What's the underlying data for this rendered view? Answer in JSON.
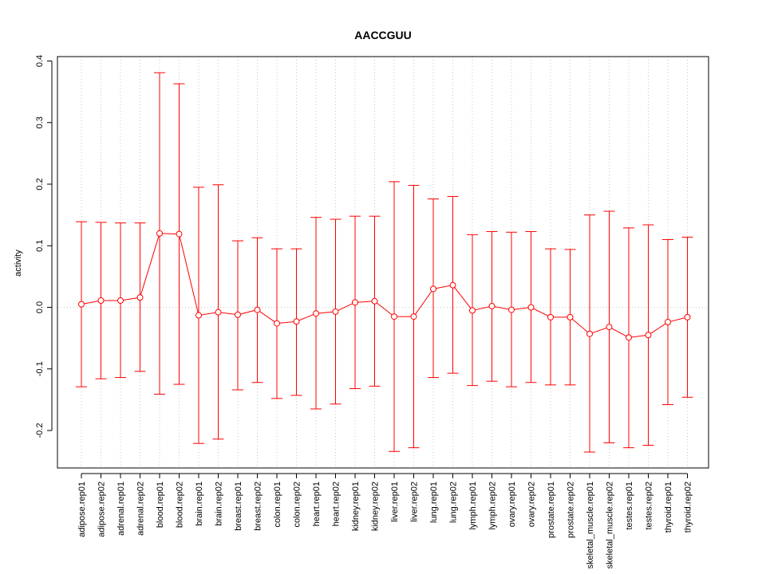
{
  "chart_data": {
    "type": "line",
    "title": "AACCGUU",
    "xlabel": "",
    "ylabel": "activity",
    "ylim": [
      -0.26,
      0.41
    ],
    "yticks": [
      -0.2,
      -0.1,
      0.0,
      0.1,
      0.2,
      0.3,
      0.4
    ],
    "ytick_labels": [
      "-0.2",
      "-0.1",
      "0.0",
      "0.1",
      "0.2",
      "0.3",
      "0.4"
    ],
    "grid": true,
    "colors": {
      "series": "#ff0000",
      "grid": "#c8c8c8",
      "axis": "#000000"
    },
    "categories": [
      "adipose.rep01",
      "adipose.rep02",
      "adrenal.rep01",
      "adrenal.rep02",
      "blood.rep01",
      "blood.rep02",
      "brain.rep01",
      "brain.rep02",
      "breast.rep01",
      "breast.rep02",
      "colon.rep01",
      "colon.rep02",
      "heart.rep01",
      "heart.rep02",
      "kidney.rep01",
      "kidney.rep02",
      "liver.rep01",
      "liver.rep02",
      "lung.rep01",
      "lung.rep02",
      "lymph.rep01",
      "lymph.rep02",
      "ovary.rep01",
      "ovary.rep02",
      "prostate.rep01",
      "prostate.rep02",
      "skeletal_muscle.rep01",
      "skeletal_muscle.rep02",
      "testes.rep01",
      "testes.rep02",
      "thyroid.rep01",
      "thyroid.rep02"
    ],
    "values": [
      0.005,
      0.011,
      0.011,
      0.016,
      0.12,
      0.119,
      -0.013,
      -0.008,
      -0.012,
      -0.004,
      -0.026,
      -0.023,
      -0.01,
      -0.007,
      0.008,
      0.01,
      -0.015,
      -0.015,
      0.03,
      0.036,
      -0.005,
      0.002,
      -0.004,
      0.0,
      -0.016,
      -0.016,
      -0.043,
      -0.032,
      -0.049,
      -0.045,
      -0.024,
      -0.016
    ],
    "upper": [
      0.139,
      0.138,
      0.137,
      0.137,
      0.381,
      0.363,
      0.195,
      0.199,
      0.108,
      0.113,
      0.095,
      0.095,
      0.146,
      0.143,
      0.148,
      0.148,
      0.204,
      0.198,
      0.176,
      0.18,
      0.118,
      0.123,
      0.122,
      0.123,
      0.095,
      0.094,
      0.15,
      0.156,
      0.129,
      0.134,
      0.11,
      0.114
    ],
    "lower": [
      -0.129,
      -0.116,
      -0.114,
      -0.104,
      -0.141,
      -0.125,
      -0.221,
      -0.214,
      -0.134,
      -0.122,
      -0.148,
      -0.143,
      -0.165,
      -0.157,
      -0.132,
      -0.128,
      -0.234,
      -0.228,
      -0.114,
      -0.107,
      -0.127,
      -0.12,
      -0.129,
      -0.122,
      -0.126,
      -0.126,
      -0.235,
      -0.22,
      -0.228,
      -0.224,
      -0.158,
      -0.146
    ]
  }
}
